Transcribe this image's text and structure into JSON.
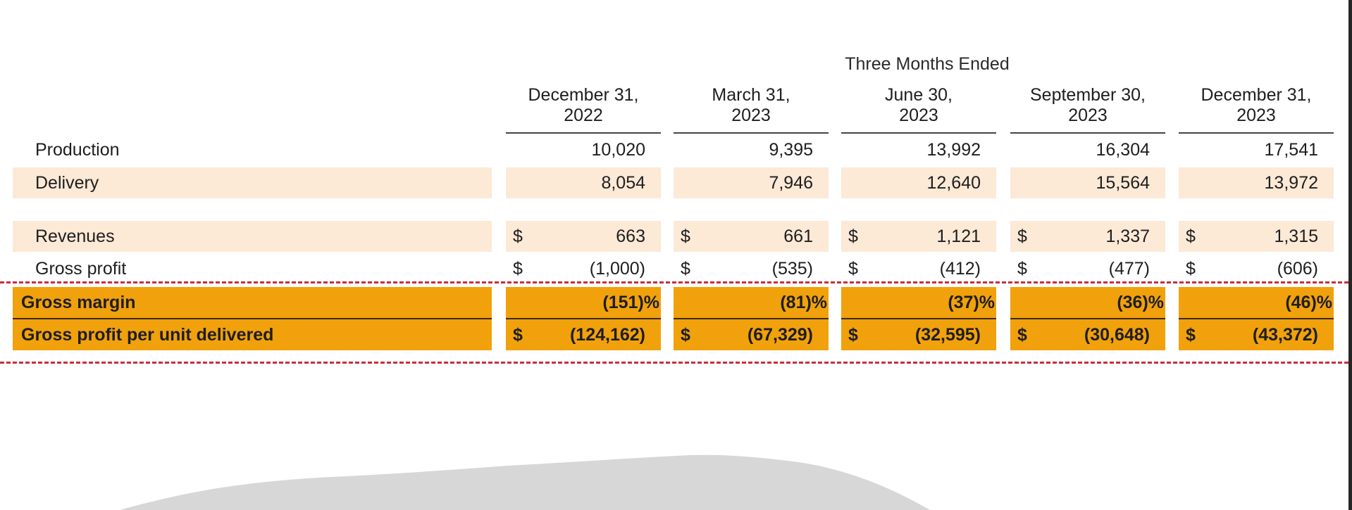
{
  "header": {
    "super_title": "Three Months Ended"
  },
  "columns": [
    {
      "line1": "December 31,",
      "line2": "2022"
    },
    {
      "line1": "March 31,",
      "line2": "2023"
    },
    {
      "line1": "June 30,",
      "line2": "2023"
    },
    {
      "line1": "September 30,",
      "line2": "2023"
    },
    {
      "line1": "December 31,",
      "line2": "2023"
    }
  ],
  "rows": {
    "production": {
      "label": "Production",
      "values": [
        "10,020",
        "9,395",
        "13,992",
        "16,304",
        "17,541"
      ]
    },
    "delivery": {
      "label": "Delivery",
      "values": [
        "8,054",
        "7,946",
        "12,640",
        "15,564",
        "13,972"
      ]
    },
    "revenues": {
      "label": "Revenues",
      "currency": "$",
      "values": [
        "663",
        "661",
        "1,121",
        "1,337",
        "1,315"
      ]
    },
    "gross_profit": {
      "label": "Gross profit",
      "currency": "$",
      "values": [
        "(1,000)",
        "(535)",
        "(412)",
        "(477)",
        "(606)"
      ]
    },
    "gross_margin": {
      "label": "Gross margin",
      "values": [
        "(151)%",
        "(81)%",
        "(37)%",
        "(36)%",
        "(46)%"
      ]
    },
    "gross_profit_per_unit": {
      "label": "Gross profit per unit delivered",
      "currency": "$",
      "values": [
        "(124,162)",
        "(67,329)",
        "(32,595)",
        "(30,648)",
        "(43,372)"
      ]
    }
  },
  "colors": {
    "highlight_orange": "#f1a10c",
    "row_tan": "#fce9d6",
    "dash_red": "#c92d3c"
  }
}
